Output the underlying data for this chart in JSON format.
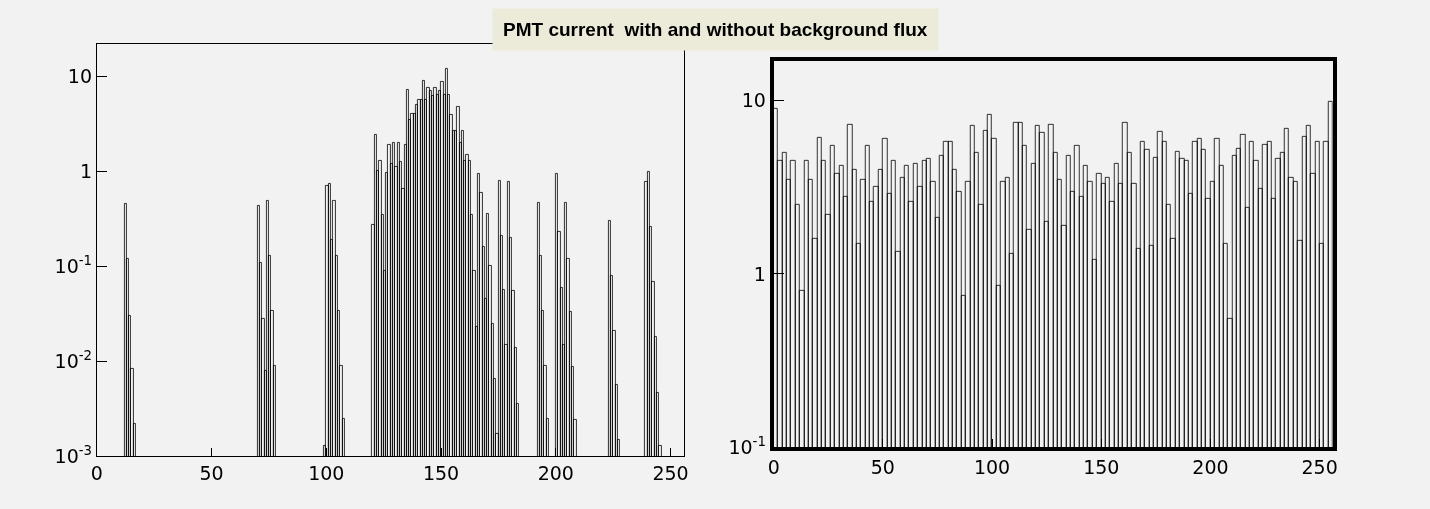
{
  "chart_data": [
    {
      "type": "histogram",
      "title": "PMT current  with and without background flux",
      "log": true,
      "grid": false,
      "bins": [
        12,
        13,
        14,
        15,
        16,
        17,
        70,
        71,
        72,
        73,
        74,
        75,
        76,
        77,
        78,
        99,
        100,
        101,
        102,
        103,
        104,
        105,
        106,
        107,
        108,
        120,
        121,
        122,
        123,
        124,
        125,
        126,
        127,
        128,
        129,
        130,
        131,
        132,
        133,
        134,
        135,
        136,
        137,
        138,
        139,
        140,
        141,
        142,
        143,
        144,
        145,
        146,
        147,
        148,
        149,
        150,
        151,
        152,
        153,
        154,
        155,
        156,
        157,
        158,
        159,
        160,
        161,
        162,
        163,
        164,
        165,
        166,
        167,
        168,
        169,
        170,
        171,
        172,
        173,
        174,
        175,
        176,
        177,
        178,
        179,
        180,
        181,
        182,
        183,
        184,
        192,
        193,
        194,
        195,
        196,
        197,
        200,
        201,
        202,
        203,
        204,
        205,
        206,
        207,
        208,
        209,
        223,
        224,
        225,
        226,
        227,
        228,
        239,
        240,
        241,
        242,
        243,
        244,
        245,
        246
      ],
      "values": [
        0.46,
        0.12,
        0.03,
        0.0083,
        0.0022,
        null,
        0.43,
        0.11,
        0.028,
        0.008,
        0.49,
        0.13,
        0.034,
        0.009,
        null,
        0.0013,
        0.7,
        0.74,
        0.19,
        0.49,
        0.13,
        0.034,
        0.009,
        0.0025,
        null,
        0.27,
        2.45,
        1.0,
        1.3,
        0.35,
        0.09,
        0.96,
        1.9,
        1.2,
        2.0,
        1.12,
        2.0,
        1.26,
        0.65,
        1.9,
        7.2,
        3.5,
        4.0,
        4.0,
        5.0,
        5.7,
        5.7,
        8.9,
        5.7,
        7.5,
        7.0,
        6.2,
        7.5,
        6.4,
        7.0,
        8.7,
        6.4,
        12,
        6.4,
        3.9,
        2.7,
        2.7,
        4.8,
        2.0,
        2.7,
        1.3,
        1.5,
        1.3,
        0.35,
        0.09,
        0.023,
        0.93,
        0.6,
        0.16,
        0.045,
        0.36,
        0.1,
        0.025,
        0.0066,
        0.0017,
        0.8,
        0.21,
        0.056,
        0.015,
        0.78,
        0.2,
        0.055,
        0.014,
        0.0036,
        null,
        0.47,
        0.13,
        0.034,
        0.009,
        0.0025,
        null,
        0.93,
        0.23,
        0.06,
        0.015,
        0.47,
        0.12,
        0.033,
        0.0088,
        0.0024,
        null,
        0.3,
        0.08,
        0.021,
        0.0057,
        0.0015,
        null,
        0.78,
        0.98,
        0.26,
        0.068,
        0.018,
        0.0047,
        0.0013
      ],
      "color": "#000000",
      "xlim": [
        0,
        256
      ],
      "xticks": [
        0,
        50,
        100,
        150,
        200,
        250
      ],
      "ylim": [
        0.001,
        22
      ],
      "yticks": [
        {
          "value": 0.001,
          "label": "10$^{-3}$"
        },
        {
          "value": 0.01,
          "label": "10$^{-2}$"
        },
        {
          "value": 0.1,
          "label": "10$^{-1}$"
        },
        1,
        10
      ]
    },
    {
      "type": "histogram",
      "log": true,
      "grid": false,
      "bins": [
        0,
        2,
        4,
        6,
        8,
        10,
        12,
        14,
        16,
        18,
        20,
        22,
        24,
        26,
        28,
        30,
        32,
        34,
        36,
        38,
        40,
        42,
        44,
        46,
        48,
        50,
        52,
        54,
        56,
        58,
        60,
        62,
        64,
        66,
        68,
        70,
        72,
        74,
        76,
        78,
        80,
        82,
        84,
        86,
        88,
        90,
        92,
        94,
        96,
        98,
        100,
        102,
        104,
        106,
        108,
        110,
        112,
        114,
        116,
        118,
        120,
        122,
        124,
        126,
        128,
        130,
        132,
        134,
        136,
        138,
        140,
        142,
        144,
        146,
        148,
        150,
        152,
        154,
        156,
        158,
        160,
        162,
        164,
        166,
        168,
        170,
        172,
        174,
        176,
        178,
        180,
        182,
        184,
        186,
        188,
        190,
        192,
        194,
        196,
        198,
        200,
        202,
        204,
        206,
        208,
        210,
        212,
        214,
        216,
        218,
        220,
        222,
        224,
        226,
        228,
        230,
        232,
        234,
        236,
        238,
        240,
        242,
        244,
        246,
        248,
        250,
        252,
        254,
        256
      ],
      "values": [
        9,
        4.5,
        5,
        3.5,
        4.5,
        2.5,
        0.8,
        4.5,
        3.5,
        1.6,
        6.1,
        4.5,
        2.2,
        5.5,
        3.8,
        4.2,
        2.8,
        7.3,
        4,
        1.5,
        3.5,
        5.5,
        2.6,
        3.2,
        4,
        6,
        2.9,
        4.5,
        1.35,
        3.6,
        4.2,
        2.6,
        4.3,
        3.2,
        4.5,
        4.6,
        3.4,
        2.1,
        4.8,
        5.8,
        5.8,
        4,
        3,
        0.75,
        3.4,
        7.2,
        5,
        2.5,
        6.7,
        8.3,
        6,
        0.85,
        3.4,
        3.6,
        1.3,
        7.5,
        7.5,
        5.5,
        1.8,
        4.3,
        7.2,
        6.5,
        2.0,
        7.3,
        5,
        3.5,
        1.9,
        4.8,
        3,
        5.5,
        2.8,
        4.2,
        3.4,
        1.2,
        3.8,
        3.3,
        3.6,
        2.6,
        4.3,
        3.3,
        7.5,
        5,
        3.3,
        1.4,
        5.8,
        5.2,
        1.45,
        4.7,
        6.6,
        5.8,
        2.5,
        1.6,
        5.1,
        4.6,
        4.5,
        2.9,
        5.8,
        6,
        5.2,
        2.7,
        3.4,
        6,
        4.2,
        1.5,
        0.55,
        4.8,
        5.3,
        6.4,
        2.4,
        5.8,
        4.5,
        3.1,
        5.6,
        5.8,
        2.7,
        4.6,
        5,
        6.9,
        3.6,
        3.4,
        1.55,
        6.2,
        7.2,
        3.8,
        5.8,
        1.5,
        5.8,
        9.8
      ],
      "color": "#000000",
      "xlim": [
        0,
        256
      ],
      "xticks": [
        0,
        50,
        100,
        150,
        200,
        250
      ],
      "ylim": [
        0.1,
        17
      ],
      "yticks": [
        {
          "value": 0.1,
          "label": "10$^{-1}$"
        },
        1,
        10
      ]
    }
  ]
}
